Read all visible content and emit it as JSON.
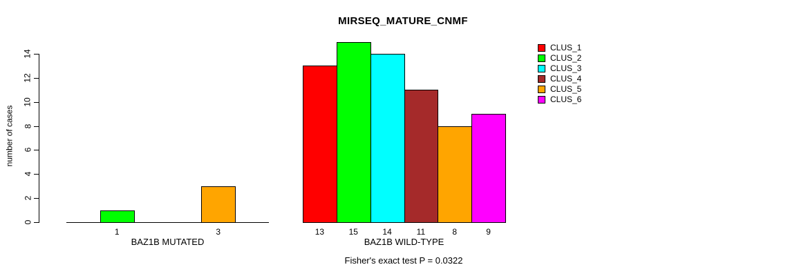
{
  "chart_data": {
    "type": "bar",
    "title": "MIRSEQ_MATURE_CNMF",
    "ylabel": "number of cases",
    "ylim": [
      0,
      14
    ],
    "yticks": [
      0,
      2,
      4,
      6,
      8,
      10,
      12,
      14
    ],
    "grid": false,
    "legend_position": "right",
    "legend": [
      {
        "label": "CLUS_1",
        "color": "#FF0000"
      },
      {
        "label": "CLUS_2",
        "color": "#00FF00"
      },
      {
        "label": "CLUS_3",
        "color": "#00FFFF"
      },
      {
        "label": "CLUS_4",
        "color": "#A52A2A"
      },
      {
        "label": "CLUS_5",
        "color": "#FFA500"
      },
      {
        "label": "CLUS_6",
        "color": "#FF00FF"
      }
    ],
    "groups": [
      {
        "label": "BAZ1B MUTATED",
        "series": [
          "CLUS_1",
          "CLUS_2",
          "CLUS_3",
          "CLUS_4",
          "CLUS_5",
          "CLUS_6"
        ],
        "values": [
          0,
          1,
          0,
          0,
          3,
          0
        ],
        "bar_count_labels": [
          "",
          "1",
          "",
          "",
          "3",
          ""
        ]
      },
      {
        "label": "BAZ1B WILD-TYPE",
        "series": [
          "CLUS_1",
          "CLUS_2",
          "CLUS_3",
          "CLUS_4",
          "CLUS_5",
          "CLUS_6"
        ],
        "values": [
          13,
          15,
          14,
          11,
          8,
          9
        ],
        "bar_count_labels": [
          "13",
          "15",
          "14",
          "11",
          "8",
          "9"
        ]
      }
    ],
    "annotation": "Fisher's exact test P = 0.0322"
  }
}
